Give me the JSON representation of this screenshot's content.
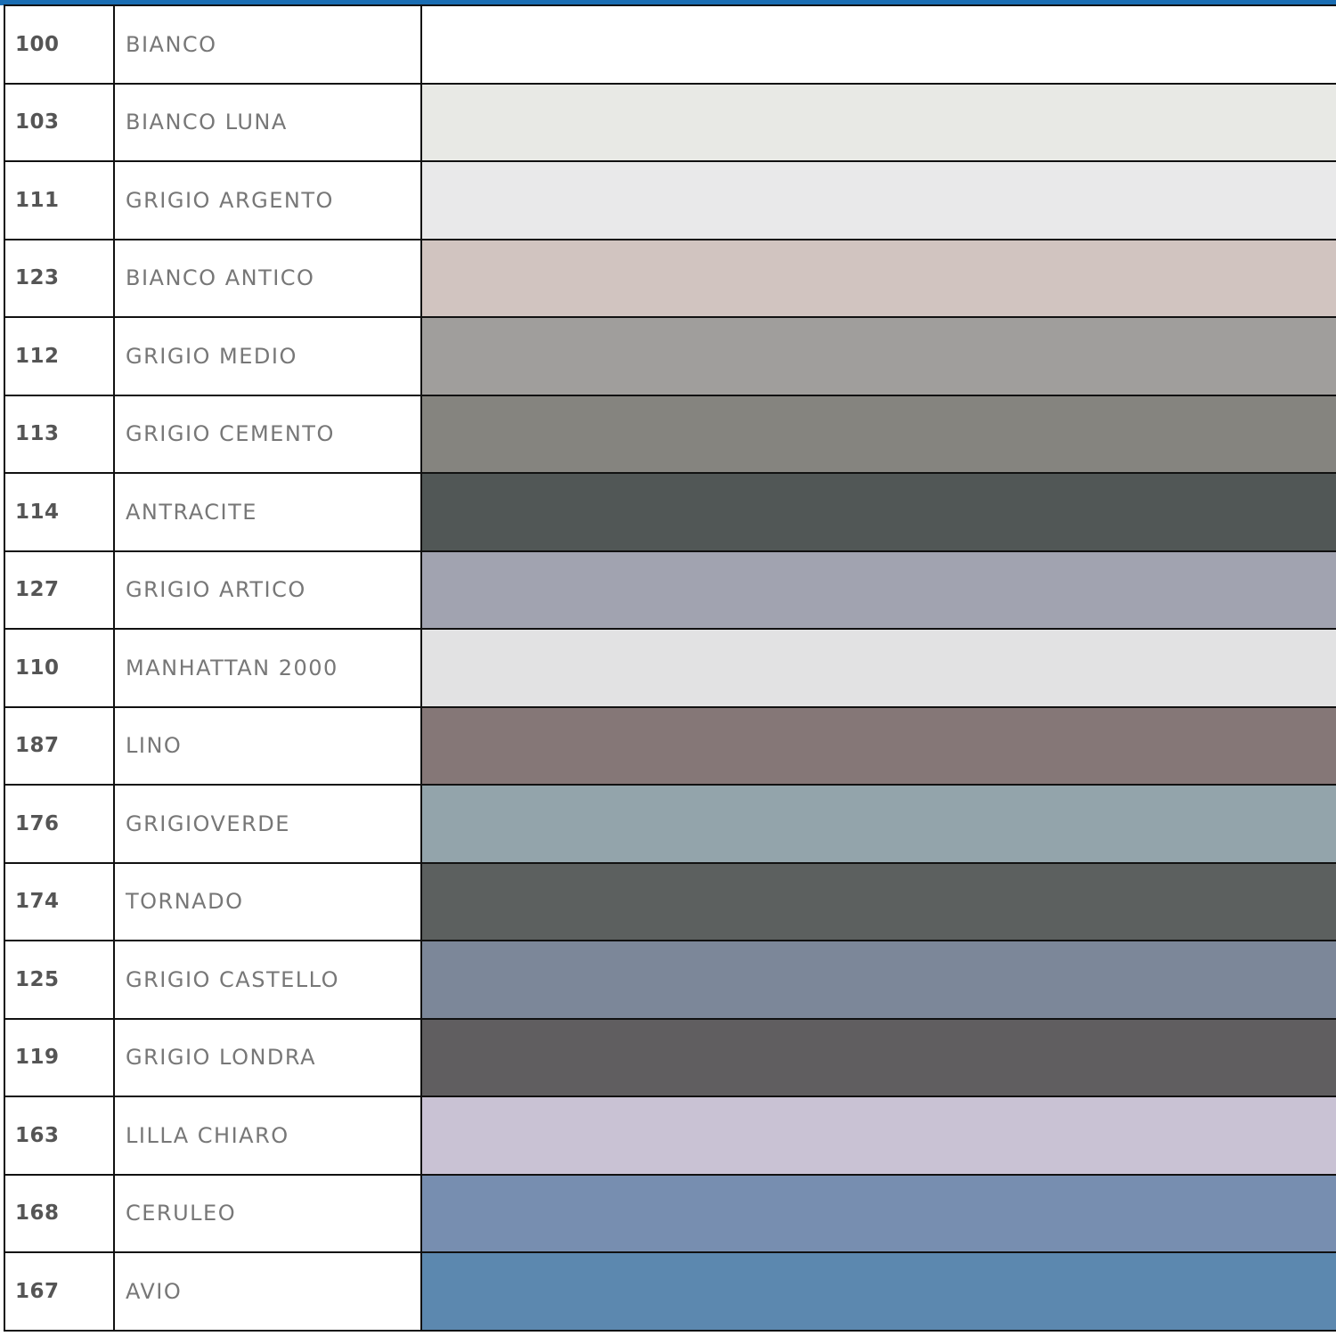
{
  "header_bar_color": "#1a6db3",
  "rows": [
    {
      "code": "100",
      "name": "BIANCO",
      "color": "#ffffff"
    },
    {
      "code": "103",
      "name": "BIANCO LUNA",
      "color": "#e8e9e5"
    },
    {
      "code": "111",
      "name": "GRIGIO ARGENTO",
      "color": "#e9e9ea"
    },
    {
      "code": "123",
      "name": "BIANCO ANTICO",
      "color": "#d1c4c0"
    },
    {
      "code": "112",
      "name": "GRIGIO MEDIO",
      "color": "#a09e9c"
    },
    {
      "code": "113",
      "name": "GRIGIO CEMENTO",
      "color": "#85847f"
    },
    {
      "code": "114",
      "name": "ANTRACITE",
      "color": "#515756"
    },
    {
      "code": "127",
      "name": "GRIGIO ARTICO",
      "color": "#a1a3b0"
    },
    {
      "code": "110",
      "name": "MANHATTAN 2000",
      "color": "#e2e2e3"
    },
    {
      "code": "187",
      "name": "LINO",
      "color": "#857777"
    },
    {
      "code": "176",
      "name": "GRIGIOVERDE",
      "color": "#93a4ab"
    },
    {
      "code": "174",
      "name": "TORNADO",
      "color": "#5c605f"
    },
    {
      "code": "125",
      "name": "GRIGIO CASTELLO",
      "color": "#7c8799"
    },
    {
      "code": "119",
      "name": "GRIGIO LONDRA",
      "color": "#605e60"
    },
    {
      "code": "163",
      "name": "LILLA CHIARO",
      "color": "#c9c2d4"
    },
    {
      "code": "168",
      "name": "CERULEO",
      "color": "#778eb0"
    },
    {
      "code": "167",
      "name": "AVIO",
      "color": "#5c88af"
    }
  ]
}
